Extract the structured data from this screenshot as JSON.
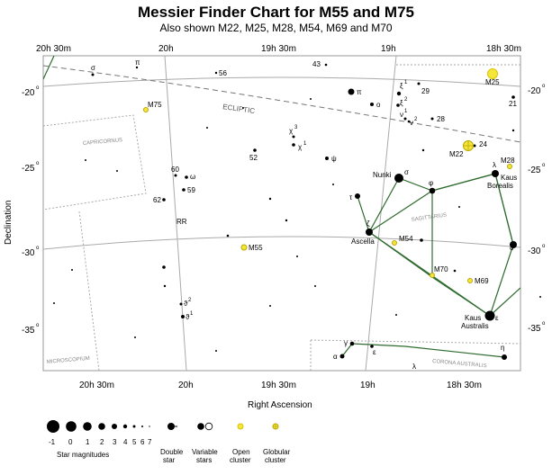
{
  "header": {
    "title": "Messier Finder Chart for M55 and M75",
    "subtitle": "Also shown M22, M25, M28, M54, M69 and M70"
  },
  "axes": {
    "ra_top": [
      "20h 30m",
      "20h",
      "19h 30m",
      "19h",
      "18h 30m"
    ],
    "ra_bottom": [
      "20h 30m",
      "20h",
      "19h 30m",
      "19h",
      "18h 30m"
    ],
    "dec_left": [
      "-20",
      "-25",
      "-30",
      "-35"
    ],
    "dec_right": [
      "-20",
      "-25",
      "-30",
      "-35"
    ],
    "degree_symbol": "o",
    "xlabel": "Right Ascension",
    "ylabel": "Declination"
  },
  "ecliptic_label": "ECLIPTIC",
  "constellations": {
    "capricornus": "CAPRICORNUS",
    "sagittarius": "SAGITTARIUS",
    "microscopium": "MICROSCOPIUM",
    "corona_australis": "CORONA AUSTRALIS"
  },
  "objects": [
    {
      "name": "M75",
      "kind": "globular"
    },
    {
      "name": "M55",
      "kind": "globular"
    },
    {
      "name": "M54",
      "kind": "globular"
    },
    {
      "name": "M70",
      "kind": "globular"
    },
    {
      "name": "M69",
      "kind": "globular"
    },
    {
      "name": "M28",
      "kind": "globular"
    },
    {
      "name": "M22",
      "kind": "globular"
    },
    {
      "name": "M25",
      "kind": "open"
    }
  ],
  "star_labels": {
    "nunki": "Nunki",
    "sigma": "σ",
    "tau": "τ",
    "phi": "φ",
    "zeta": "ζ",
    "ascella": "Ascella",
    "lambda": "λ",
    "kaus_borealis_1": "Kaus",
    "kaus_borealis_2": "Borealis",
    "delta": "δ",
    "epsilon": "ε",
    "kaus_australis_1": "Kaus",
    "kaus_australis_2": "Australis",
    "pi": "π",
    "o": "o",
    "xi1": "ξ",
    "xi1_sup": "1",
    "xi2": "ξ",
    "xi2_sup": "2",
    "nu1": "ν",
    "nu1_sup": "1",
    "nu2": "ν",
    "nu2_sup": "2",
    "n29": "29",
    "n28": "28",
    "n24": "24",
    "n21": "21",
    "n43": "43",
    "n56": "56",
    "n52": "52",
    "chi3": "χ",
    "chi3_sup": "3",
    "chi1": "χ",
    "chi1_sup": "1",
    "psi": "ψ",
    "n60": "60",
    "omega": "ω",
    "n59": "59",
    "n62": "62",
    "rr": "RR",
    "theta2": "ϑ",
    "theta2_sup": "2",
    "theta1": "ϑ",
    "theta1_sup": "1",
    "pi_cap": "π",
    "sigma_cap": "σ",
    "gamma": "γ",
    "alpha": "α",
    "epsilon_cra": "ε",
    "lambda_cra": "λ",
    "eta": "η"
  },
  "legend": {
    "magnitudes": [
      "-1",
      "0",
      "1",
      "2",
      "3",
      "4",
      "5",
      "6",
      "7"
    ],
    "magnitudes_label": "Star magnitudes",
    "double_star_1": "Double",
    "double_star_2": "star",
    "variable_1": "Variable",
    "variable_2": "stars",
    "open_1": "Open",
    "open_2": "cluster",
    "globular_1": "Globular",
    "globular_2": "cluster"
  }
}
